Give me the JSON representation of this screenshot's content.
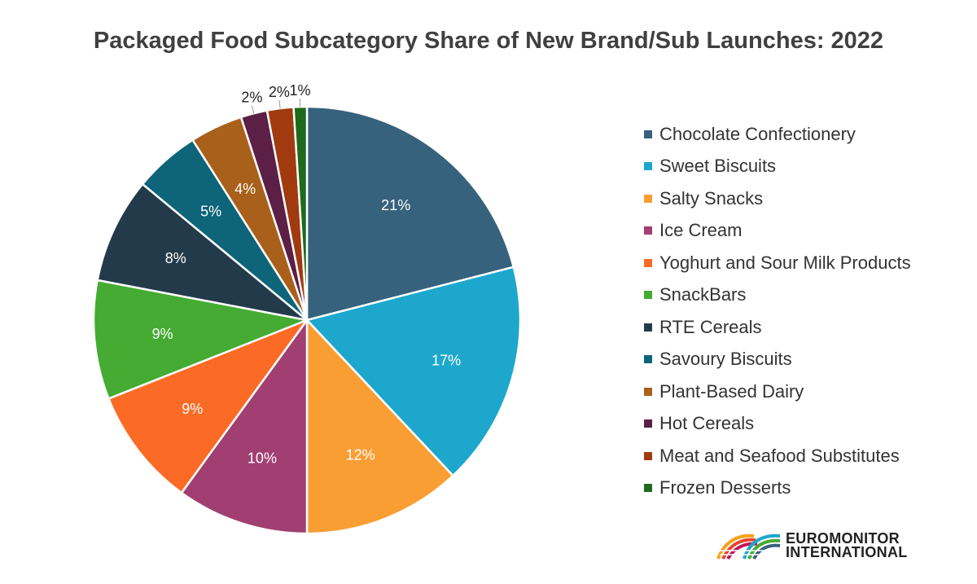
{
  "chart_data": {
    "type": "pie",
    "title": "Packaged Food Subcategory Share of New Brand/Sub Launches: 2022",
    "legend_position": "right",
    "unit": "%",
    "slices": [
      {
        "name": "Chocolate Confectionery",
        "value": 21,
        "label": "21%",
        "color": "#36627d"
      },
      {
        "name": "Sweet Biscuits",
        "value": 17,
        "label": "17%",
        "color": "#1da7cc"
      },
      {
        "name": "Salty Snacks",
        "value": 12,
        "label": "12%",
        "color": "#f99e33"
      },
      {
        "name": "Ice Cream",
        "value": 10,
        "label": "10%",
        "color": "#a13f72"
      },
      {
        "name": "Yoghurt and Sour Milk Products",
        "value": 9,
        "label": "9%",
        "color": "#fb6b25"
      },
      {
        "name": "SnackBars",
        "value": 9,
        "label": "9%",
        "color": "#45ab33"
      },
      {
        "name": "RTE Cereals",
        "value": 8,
        "label": "8%",
        "color": "#233a4b"
      },
      {
        "name": "Savoury Biscuits",
        "value": 5,
        "label": "5%",
        "color": "#0e6479"
      },
      {
        "name": "Plant-Based Dairy",
        "value": 4,
        "label": "4%",
        "color": "#a9601a"
      },
      {
        "name": "Hot Cereals",
        "value": 2,
        "label": "2%",
        "color": "#5c1f45"
      },
      {
        "name": "Meat and Seafood Substitutes",
        "value": 2,
        "label": "2%",
        "color": "#a23a0f"
      },
      {
        "name": "Frozen Desserts",
        "value": 1,
        "label": "1%",
        "color": "#1f6a1c"
      }
    ]
  },
  "branding": {
    "logo_line1": "EUROMONITOR",
    "logo_line2": "INTERNATIONAL"
  }
}
